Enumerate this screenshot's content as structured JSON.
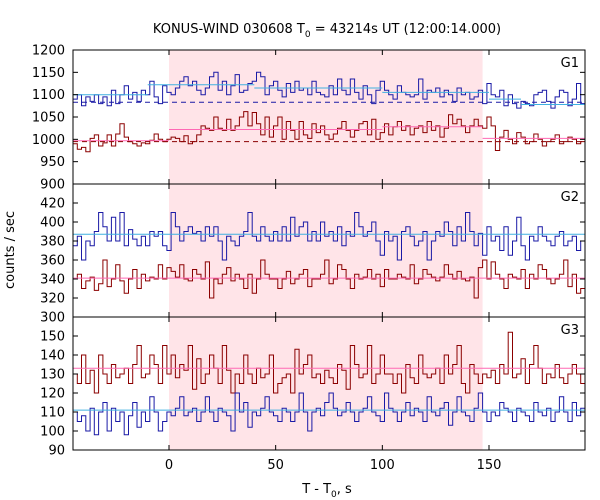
{
  "title_main": "KONUS-WIND 030608 T",
  "title_sub": "0",
  "title_rest": " = 43214s UT (12:00:14.000)",
  "ylabel": "counts / sec",
  "xlabel_main": "T - T",
  "xlabel_sub": "0",
  "xlabel_rest": ", s",
  "colors": {
    "red_series": "#8b0000",
    "blue_series": "#1a1aa6",
    "pink_fit": "#ff69b4",
    "cyan_fit": "#40b0e0",
    "shade": "#ffe4e8"
  },
  "chart_data": [
    {
      "type": "line",
      "panel": "G1",
      "xlim": [
        -45,
        195
      ],
      "ylim": [
        900,
        1200
      ],
      "xticks": [
        0,
        50,
        100,
        150
      ],
      "yticks": [
        900,
        950,
        1000,
        1050,
        1100,
        1150,
        1200
      ],
      "shaded_interval": [
        0,
        147
      ],
      "series": [
        {
          "color": "red",
          "values": [
            990,
            978,
            982,
            972,
            1002,
            1010,
            985,
            992,
            1010,
            985,
            1012,
            1035,
            1005,
            995,
            990,
            985,
            992,
            990,
            998,
            1012,
            1000,
            995,
            1000,
            1005,
            1002,
            995,
            1008,
            990,
            995,
            1010,
            1030,
            1025,
            1020,
            1050,
            1025,
            1020,
            1045,
            1020,
            1030,
            1050,
            1062,
            1030,
            1060,
            1035,
            1010,
            1050,
            1005,
            1030,
            1050,
            1000,
            1040,
            1020,
            1000,
            1040,
            1010,
            1002,
            1035,
            1015,
            1030,
            1010,
            1000,
            1012,
            1025,
            1040,
            1020,
            1005,
            1020,
            1035,
            1040,
            1010,
            1045,
            1000,
            1015,
            1035,
            1010,
            1028,
            1040,
            1020,
            1030,
            1010,
            1025,
            1030,
            1015,
            1040,
            1020,
            1030,
            1005,
            1025,
            1055,
            1035,
            1045,
            1030,
            1015,
            1030,
            1045,
            1030,
            1025,
            1050,
            1030,
            975,
            1005,
            1020,
            1000,
            990,
            1015,
            1005,
            990,
            995,
            1012,
            1000,
            985,
            995,
            1000,
            1010,
            990,
            995,
            1005,
            1000,
            990,
            995
          ]
        },
        {
          "color": "blue",
          "values": [
            1090,
            1100,
            1075,
            1095,
            1085,
            1100,
            1080,
            1095,
            1075,
            1110,
            1080,
            1100,
            1120,
            1090,
            1105,
            1085,
            1110,
            1100,
            1130,
            1095,
            1080,
            1120,
            1105,
            1100,
            1115,
            1130,
            1140,
            1120,
            1130,
            1110,
            1100,
            1115,
            1140,
            1150,
            1110,
            1130,
            1100,
            1120,
            1145,
            1105,
            1110,
            1125,
            1130,
            1150,
            1140,
            1100,
            1120,
            1130,
            1110,
            1095,
            1125,
            1105,
            1130,
            1110,
            1115,
            1100,
            1130,
            1105,
            1100,
            1095,
            1120,
            1100,
            1135,
            1110,
            1100,
            1135,
            1105,
            1090,
            1120,
            1100,
            1080,
            1110,
            1130,
            1110,
            1100,
            1090,
            1120,
            1105,
            1100,
            1095,
            1100,
            1135,
            1090,
            1110,
            1105,
            1115,
            1095,
            1110,
            1100,
            1085,
            1115,
            1100,
            1105,
            1090,
            1095,
            1110,
            1080,
            1125,
            1100,
            1095,
            1110,
            1075,
            1100,
            1080,
            1070,
            1085,
            1080,
            1075,
            1100,
            1105,
            1110,
            1085,
            1070,
            1095,
            1110,
            1105,
            1075,
            1090,
            1125,
            1080
          ]
        },
        {
          "color": "cyan-fit",
          "segments": [
            [
              -45,
              1100,
              -10,
              1100
            ],
            [
              -10,
              1122,
              40,
              1122
            ],
            [
              40,
              1115,
              100,
              1115
            ],
            [
              100,
              1105,
              150,
              1105
            ],
            [
              150,
              1090,
              165,
              1090
            ],
            [
              165,
              1078,
              195,
              1078
            ]
          ]
        },
        {
          "color": "pink-fit",
          "segments": [
            [
              -45,
              997,
              0,
              997
            ],
            [
              0,
              1022,
              100,
              1022
            ],
            [
              100,
              1028,
              147,
              1028
            ],
            [
              147,
              1002,
              195,
              1002
            ]
          ]
        },
        {
          "color": "blue-dashed",
          "level": 1083
        },
        {
          "color": "red-dashed",
          "level": 995
        }
      ]
    },
    {
      "type": "line",
      "panel": "G2",
      "xlim": [
        -45,
        195
      ],
      "ylim": [
        300,
        440
      ],
      "xticks": [
        0,
        50,
        100,
        150
      ],
      "yticks": [
        300,
        320,
        340,
        360,
        380,
        400,
        420
      ],
      "shaded_interval": [
        0,
        147
      ],
      "series": [
        {
          "color": "red",
          "values": [
            340,
            345,
            330,
            338,
            342,
            328,
            335,
            360,
            332,
            340,
            355,
            338,
            325,
            340,
            350,
            330,
            345,
            338,
            342,
            340,
            355,
            340,
            352,
            348,
            342,
            355,
            340,
            338,
            350,
            345,
            340,
            358,
            320,
            340,
            335,
            345,
            352,
            338,
            345,
            340,
            330,
            345,
            325,
            340,
            360,
            345,
            340,
            340,
            330,
            340,
            348,
            335,
            340,
            345,
            350,
            332,
            340,
            340,
            345,
            360,
            335,
            340,
            355,
            350,
            340,
            330,
            345,
            340,
            342,
            350,
            340,
            345,
            332,
            350,
            340,
            340,
            345,
            342,
            340,
            355,
            335,
            340,
            350,
            345,
            342,
            338,
            342,
            355,
            345,
            340,
            348,
            340,
            338,
            342,
            320,
            352,
            360,
            340,
            358,
            345,
            340,
            330,
            345,
            342,
            340,
            350,
            330,
            345,
            340,
            355,
            350,
            340,
            335,
            340,
            345,
            360,
            332,
            345,
            325,
            330
          ]
        },
        {
          "color": "blue",
          "values": [
            375,
            385,
            360,
            380,
            375,
            390,
            410,
            395,
            380,
            405,
            380,
            410,
            375,
            392,
            382,
            375,
            385,
            375,
            390,
            385,
            390,
            375,
            370,
            410,
            395,
            380,
            390,
            395,
            388,
            390,
            380,
            395,
            385,
            395,
            380,
            360,
            385,
            380,
            375,
            385,
            390,
            410,
            385,
            380,
            395,
            385,
            380,
            390,
            380,
            395,
            380,
            405,
            385,
            395,
            400,
            380,
            390,
            380,
            400,
            385,
            390,
            380,
            395,
            375,
            390,
            385,
            410,
            395,
            385,
            390,
            400,
            380,
            365,
            390,
            380,
            385,
            360,
            390,
            395,
            385,
            375,
            380,
            390,
            360,
            380,
            390,
            385,
            400,
            390,
            375,
            395,
            380,
            410,
            390,
            375,
            388,
            365,
            395,
            380,
            385,
            370,
            395,
            365,
            380,
            405,
            375,
            360,
            385,
            380,
            395,
            385,
            380,
            375,
            385,
            390,
            375,
            380,
            385,
            370,
            380
          ]
        },
        {
          "color": "cyan-fit",
          "segments": [
            [
              -45,
              387,
              195,
              387
            ]
          ]
        },
        {
          "color": "pink-fit",
          "segments": [
            [
              -45,
              341,
              195,
              341
            ]
          ]
        }
      ]
    },
    {
      "type": "line",
      "panel": "G3",
      "xlim": [
        -45,
        195
      ],
      "ylim": [
        90,
        160
      ],
      "xticks": [
        0,
        50,
        100,
        150
      ],
      "yticks": [
        90,
        100,
        110,
        120,
        130,
        140,
        150
      ],
      "shaded_interval": [
        0,
        147
      ],
      "series": [
        {
          "color": "red",
          "values": [
            130,
            125,
            140,
            125,
            132,
            120,
            140,
            130,
            125,
            135,
            128,
            130,
            133,
            125,
            135,
            145,
            128,
            130,
            140,
            135,
            125,
            145,
            130,
            140,
            128,
            135,
            132,
            145,
            122,
            138,
            125,
            130,
            140,
            133,
            125,
            145,
            132,
            120,
            130,
            125,
            140,
            130,
            125,
            133,
            128,
            130,
            140,
            120,
            125,
            128,
            130,
            120,
            143,
            130,
            135,
            140,
            128,
            130,
            125,
            132,
            128,
            125,
            135,
            132,
            122,
            145,
            135,
            128,
            130,
            145,
            125,
            130,
            140,
            130,
            130,
            125,
            130,
            120,
            135,
            128,
            125,
            140,
            130,
            128,
            130,
            133,
            125,
            140,
            130,
            135,
            145,
            125,
            120,
            135,
            130,
            125,
            130,
            128,
            132,
            125,
            135,
            130,
            152,
            128,
            130,
            138,
            125,
            135,
            145,
            133,
            125,
            130,
            128,
            135,
            128,
            125,
            130,
            135,
            130,
            125
          ]
        },
        {
          "color": "blue",
          "values": [
            110,
            105,
            108,
            100,
            112,
            98,
            110,
            115,
            100,
            112,
            105,
            110,
            98,
            108,
            115,
            102,
            110,
            105,
            118,
            110,
            100,
            105,
            110,
            108,
            112,
            118,
            108,
            110,
            112,
            105,
            110,
            118,
            110,
            105,
            112,
            110,
            108,
            100,
            120,
            110,
            115,
            102,
            110,
            108,
            112,
            118,
            110,
            108,
            105,
            112,
            110,
            105,
            110,
            120,
            110,
            100,
            110,
            112,
            108,
            115,
            120,
            112,
            108,
            110,
            115,
            110,
            105,
            110,
            112,
            118,
            110,
            108,
            105,
            120,
            112,
            110,
            105,
            110,
            115,
            108,
            112,
            110,
            105,
            118,
            110,
            108,
            112,
            115,
            103,
            110,
            118,
            110,
            108,
            105,
            112,
            120,
            110,
            105,
            110,
            108,
            115,
            112,
            110,
            105,
            112,
            110,
            108,
            105,
            115,
            110,
            108,
            112,
            105,
            110,
            118,
            110,
            105,
            115,
            108,
            112
          ]
        },
        {
          "color": "cyan-fit",
          "segments": [
            [
              -45,
              111,
              195,
              111
            ]
          ]
        },
        {
          "color": "pink-fit",
          "segments": [
            [
              -45,
              133,
              195,
              133
            ]
          ]
        }
      ]
    }
  ]
}
